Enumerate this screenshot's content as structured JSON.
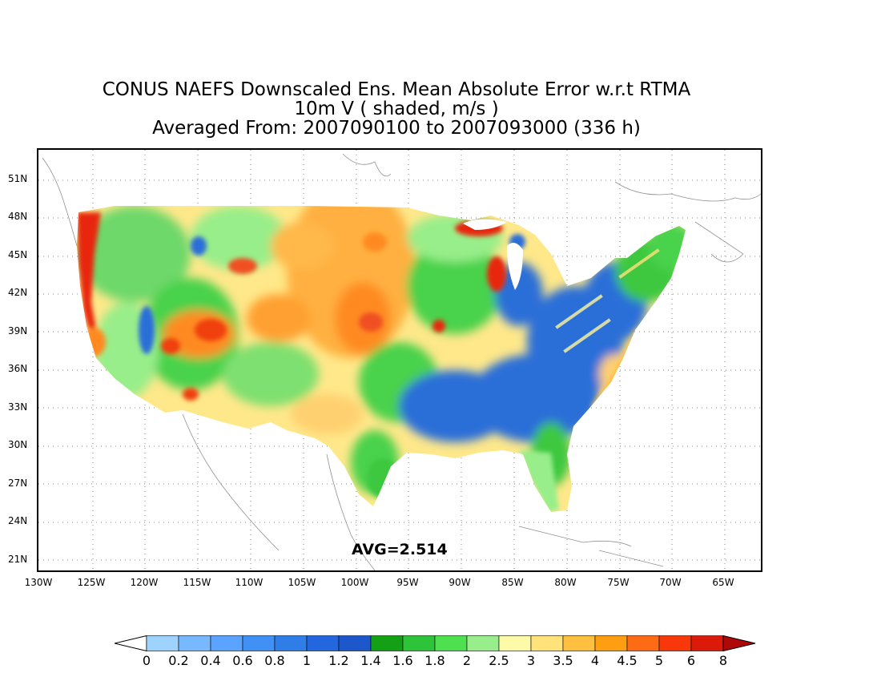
{
  "title": {
    "line1": "CONUS NAEFS Downscaled Ens. Mean Absolute Error w.r.t RTMA",
    "line2": "10m V ( shaded, m/s )",
    "line3": "Averaged From: 2007090100 to 2007093000 (336 h)"
  },
  "average_label": "AVG=2.514",
  "latitude_labels": [
    "51N",
    "48N",
    "45N",
    "42N",
    "39N",
    "36N",
    "33N",
    "30N",
    "27N",
    "24N",
    "21N"
  ],
  "longitude_labels": [
    "130W",
    "125W",
    "120W",
    "115W",
    "110W",
    "105W",
    "100W",
    "95W",
    "90W",
    "85W",
    "80W",
    "75W",
    "70W",
    "65W"
  ],
  "colorbar": {
    "labels": [
      "0",
      "0.2",
      "0.4",
      "0.6",
      "0.8",
      "1",
      "1.2",
      "1.4",
      "1.6",
      "1.8",
      "2",
      "2.5",
      "3",
      "3.5",
      "4",
      "4.5",
      "5",
      "6",
      "8"
    ],
    "colors": [
      "#ffffff",
      "#9fd3ff",
      "#78b8ff",
      "#5aa4ff",
      "#4090f5",
      "#2f7ee8",
      "#2266e0",
      "#1c58cc",
      "#14a014",
      "#2ec43a",
      "#4fe050",
      "#98ee8a",
      "#fffaa8",
      "#ffe27a",
      "#ffc040",
      "#ff9e10",
      "#ff6a14",
      "#f8380a",
      "#dc1a0a",
      "#b00808"
    ]
  },
  "map_colors": {
    "low_blue": "#2a6ed8",
    "mid_green": "#3cc840",
    "light_green": "#98ee8a",
    "yellow": "#ffe88a",
    "orange": "#ffa030",
    "red": "#e82810"
  }
}
